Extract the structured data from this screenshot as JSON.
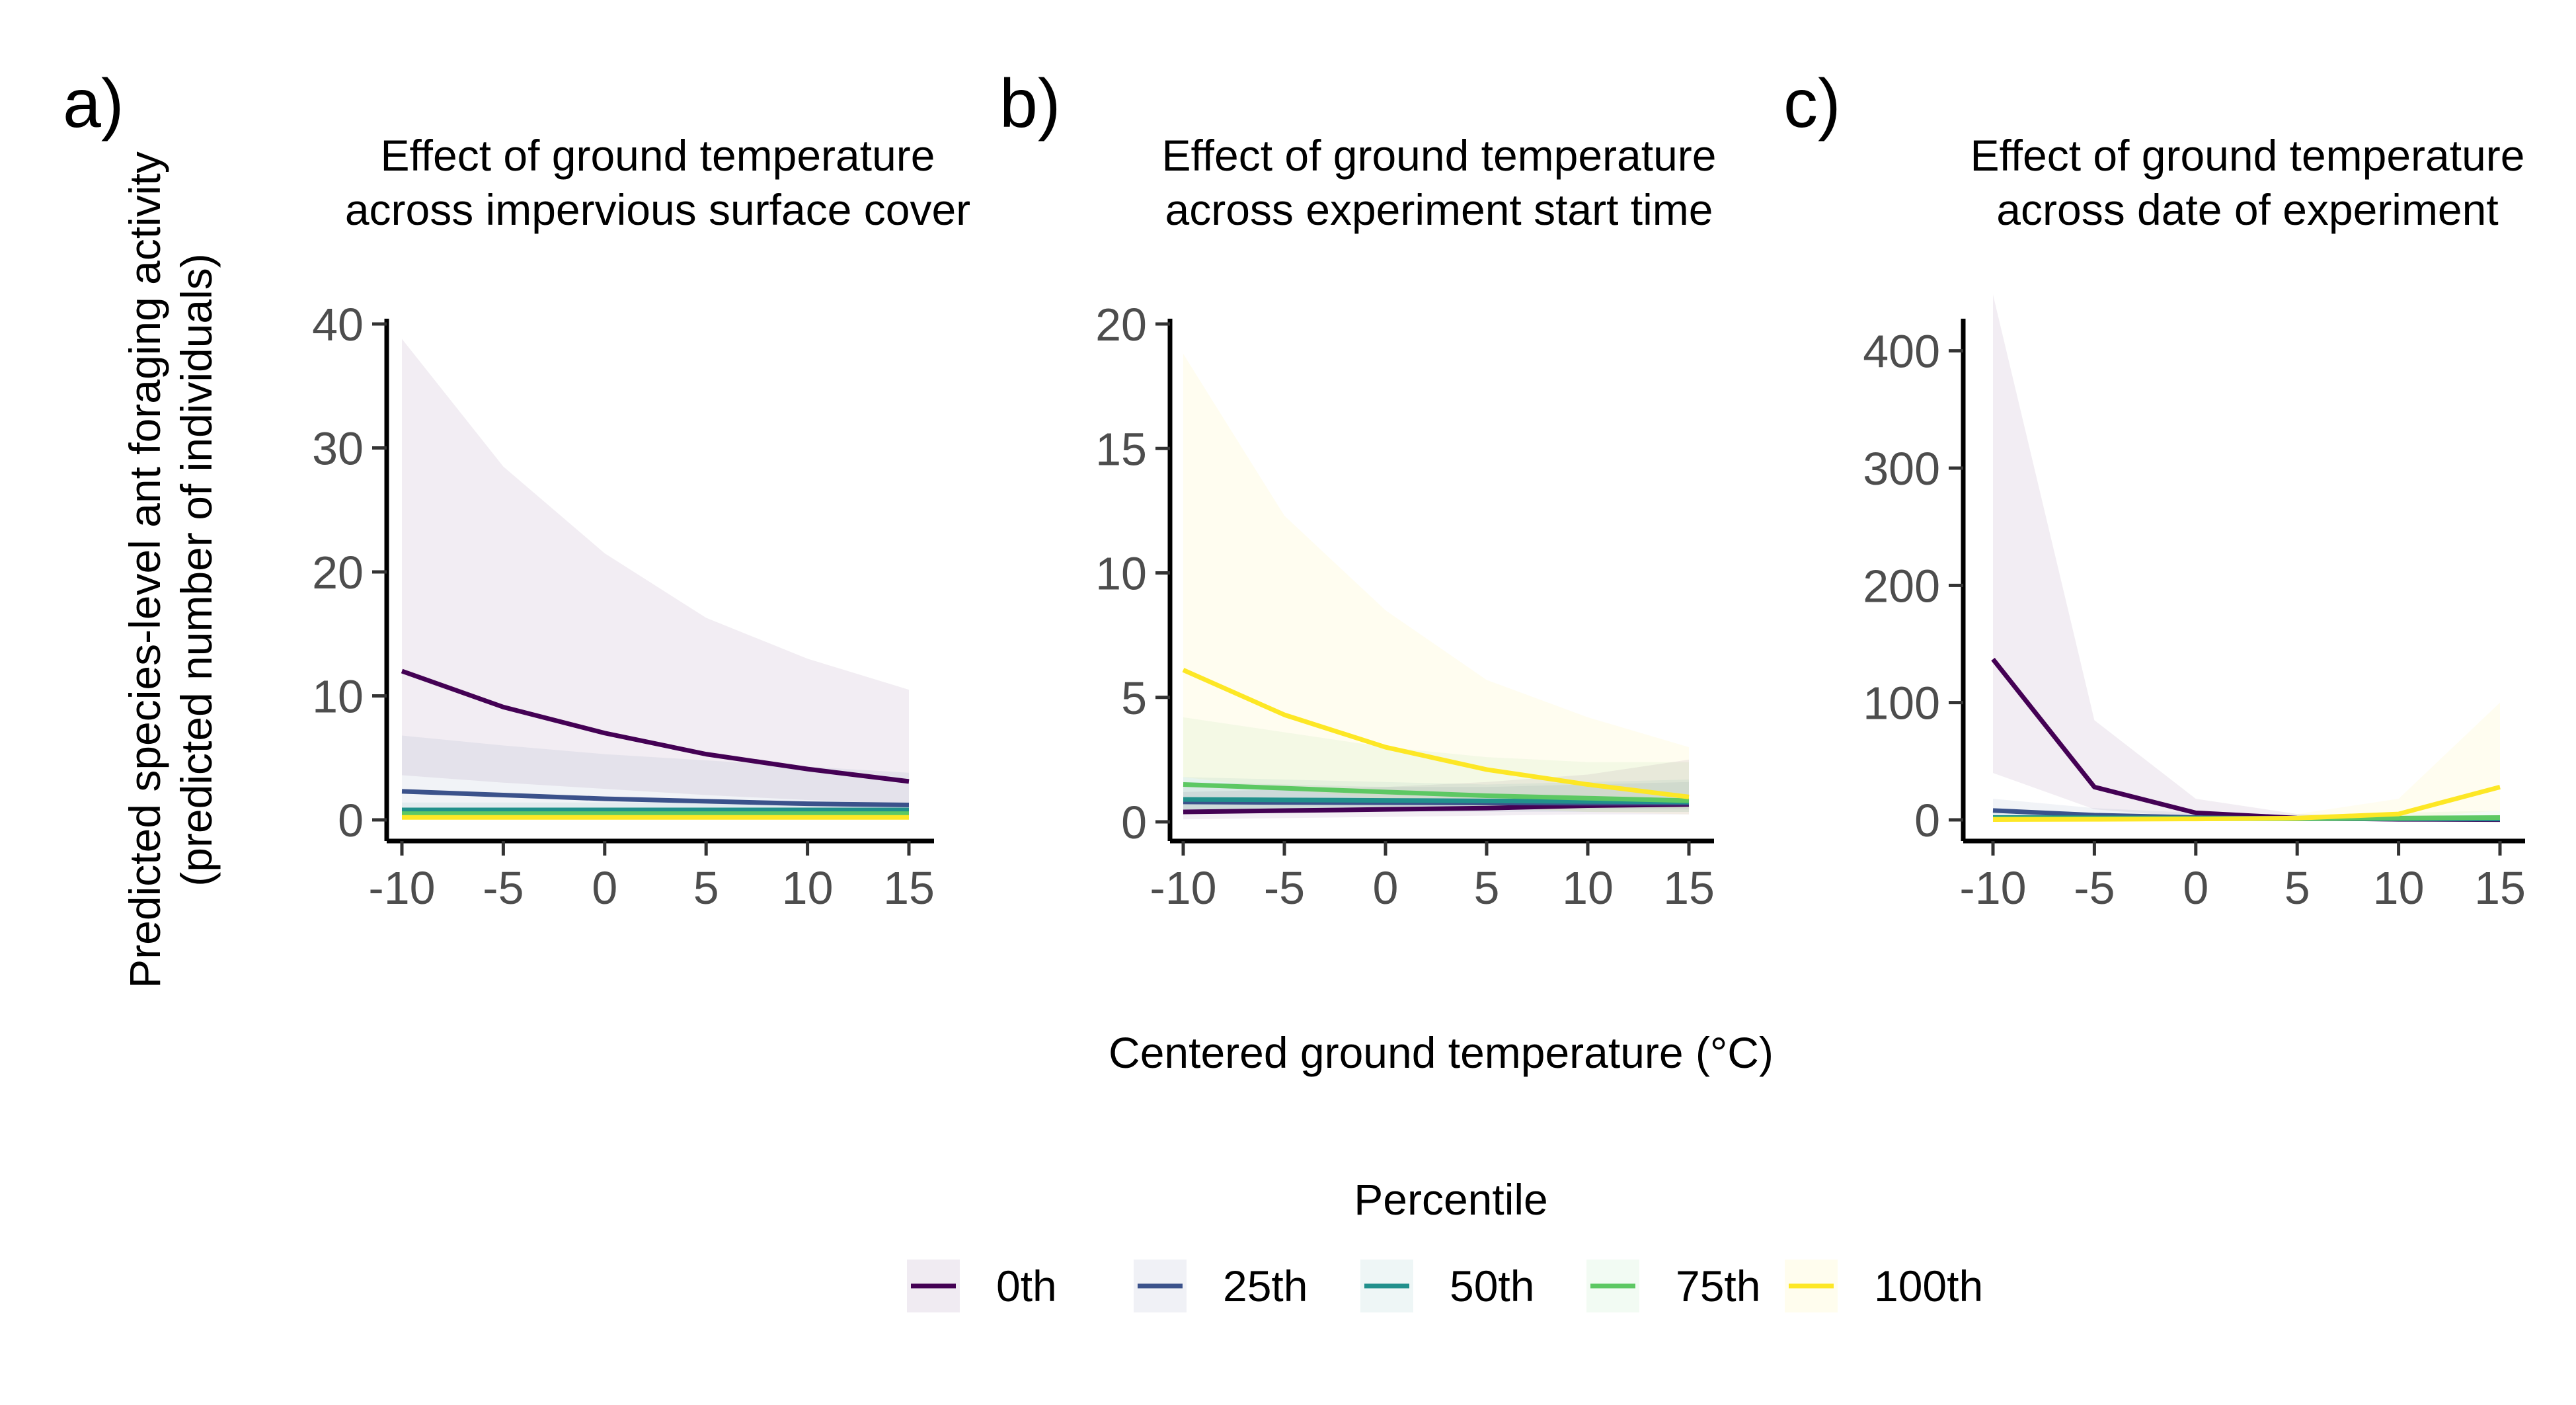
{
  "y_axis_label": [
    "Predicted species-level ant foraging activity",
    "(predicted number of individuals)"
  ],
  "x_axis_label": "Centered ground temperature (°C)",
  "legend": {
    "title": "Percentile",
    "items": [
      {
        "label": "0th",
        "color": "#440154"
      },
      {
        "label": "25th",
        "color": "#3B528B"
      },
      {
        "label": "50th",
        "color": "#21908C"
      },
      {
        "label": "75th",
        "color": "#5DC863"
      },
      {
        "label": "100th",
        "color": "#FDE725"
      }
    ]
  },
  "chart_data": [
    {
      "type": "line",
      "panel_label": "a)",
      "title": [
        "Effect of ground temperature",
        "across impervious surface cover"
      ],
      "xlim": [
        -10,
        15
      ],
      "ylim": [
        0,
        40
      ],
      "x_ticks": [
        "-10",
        "-5",
        "0",
        "5",
        "10",
        "15"
      ],
      "y_ticks": [
        "0",
        "10",
        "20",
        "30",
        "40"
      ],
      "x": [
        -10,
        -5,
        0,
        5,
        10,
        15
      ],
      "series": [
        {
          "name": "0th",
          "values": [
            12,
            9.1,
            7,
            5.3,
            4.1,
            3.1
          ],
          "lower": [
            3.6,
            3.0,
            2.5,
            2.0,
            1.6,
            1.3
          ],
          "upper": [
            38.8,
            28.5,
            21.5,
            16.3,
            13.0,
            10.5
          ]
        },
        {
          "name": "25th",
          "values": [
            2.3,
            2.0,
            1.7,
            1.5,
            1.3,
            1.2
          ],
          "lower": [
            0.9,
            0.8,
            0.7,
            0.6,
            0.5,
            0.4
          ],
          "upper": [
            6.8,
            6.0,
            5.3,
            4.8,
            4.3,
            3.8
          ]
        },
        {
          "name": "50th",
          "values": [
            0.8,
            0.8,
            0.8,
            0.8,
            0.8,
            0.8
          ],
          "lower": [
            0.4,
            0.4,
            0.4,
            0.4,
            0.4,
            0.4
          ],
          "upper": [
            1.4,
            1.4,
            1.4,
            1.4,
            1.4,
            1.4
          ]
        },
        {
          "name": "75th",
          "values": [
            0.5,
            0.5,
            0.5,
            0.5,
            0.5,
            0.5
          ],
          "lower": [
            0.2,
            0.2,
            0.2,
            0.2,
            0.2,
            0.2
          ],
          "upper": [
            1.0,
            1.0,
            1.0,
            1.0,
            1.0,
            1.0
          ]
        },
        {
          "name": "100th",
          "values": [
            0.2,
            0.2,
            0.2,
            0.2,
            0.2,
            0.2
          ],
          "lower": [
            0.05,
            0.05,
            0.05,
            0.05,
            0.05,
            0.05
          ],
          "upper": [
            0.6,
            0.6,
            0.6,
            0.6,
            0.6,
            0.6
          ]
        }
      ]
    },
    {
      "type": "line",
      "panel_label": "b)",
      "title": [
        "Effect of ground temperature",
        "across experiment start time"
      ],
      "xlim": [
        -10,
        15
      ],
      "ylim": [
        0,
        20
      ],
      "x_ticks": [
        "-10",
        "-5",
        "0",
        "5",
        "10",
        "15"
      ],
      "y_ticks": [
        "0",
        "5",
        "10",
        "15",
        "20"
      ],
      "x": [
        -10,
        -5,
        0,
        5,
        10,
        15
      ],
      "series": [
        {
          "name": "0th",
          "values": [
            0.4,
            0.45,
            0.5,
            0.55,
            0.65,
            0.7
          ],
          "lower": [
            0.1,
            0.15,
            0.2,
            0.25,
            0.3,
            0.3
          ],
          "upper": [
            1.2,
            1.3,
            1.4,
            1.6,
            1.9,
            2.5
          ]
        },
        {
          "name": "25th",
          "values": [
            0.8,
            0.78,
            0.77,
            0.76,
            0.75,
            0.75
          ],
          "lower": [
            0.4,
            0.4,
            0.4,
            0.4,
            0.4,
            0.4
          ],
          "upper": [
            1.6,
            1.5,
            1.4,
            1.4,
            1.5,
            1.6
          ]
        },
        {
          "name": "50th",
          "values": [
            0.9,
            0.88,
            0.86,
            0.84,
            0.82,
            0.8
          ],
          "lower": [
            0.5,
            0.5,
            0.5,
            0.5,
            0.5,
            0.5
          ],
          "upper": [
            1.8,
            1.7,
            1.6,
            1.5,
            1.6,
            1.7
          ]
        },
        {
          "name": "75th",
          "values": [
            1.5,
            1.35,
            1.2,
            1.05,
            0.95,
            0.85
          ],
          "lower": [
            0.5,
            0.5,
            0.5,
            0.5,
            0.4,
            0.4
          ],
          "upper": [
            4.2,
            3.6,
            3.0,
            2.6,
            2.4,
            2.4
          ]
        },
        {
          "name": "100th",
          "values": [
            6.1,
            4.3,
            3.0,
            2.1,
            1.5,
            1.0
          ],
          "lower": [
            1.8,
            1.3,
            0.9,
            0.6,
            0.4,
            0.3
          ],
          "upper": [
            18.8,
            12.3,
            8.5,
            5.7,
            4.2,
            3.0
          ]
        }
      ]
    },
    {
      "type": "line",
      "panel_label": "c)",
      "title": [
        "Effect of ground temperature",
        "across date of experiment"
      ],
      "xlim": [
        -10,
        15
      ],
      "ylim": [
        0,
        450
      ],
      "x_ticks": [
        "-10",
        "-5",
        "0",
        "5",
        "10",
        "15"
      ],
      "y_ticks": [
        "0",
        "100",
        "200",
        "300",
        "400"
      ],
      "x": [
        -10,
        -5,
        0,
        5,
        10,
        15
      ],
      "series": [
        {
          "name": "0th",
          "values": [
            137,
            28,
            6,
            1.5,
            0.5,
            0.2
          ],
          "lower": [
            40,
            9,
            2,
            0.5,
            0.1,
            0.05
          ],
          "upper": [
            448,
            85,
            18,
            5,
            2,
            1
          ]
        },
        {
          "name": "25th",
          "values": [
            8,
            4,
            2,
            1,
            0.8,
            0.6
          ],
          "lower": [
            2,
            1,
            0.5,
            0.3,
            0.2,
            0.1
          ],
          "upper": [
            18,
            10,
            6,
            3,
            2,
            2
          ]
        },
        {
          "name": "50th",
          "values": [
            2,
            1.8,
            1.5,
            1.2,
            1,
            1
          ],
          "lower": [
            0.5,
            0.5,
            0.4,
            0.3,
            0.3,
            0.3
          ],
          "upper": [
            6,
            5,
            4,
            3,
            3,
            3
          ]
        },
        {
          "name": "75th",
          "values": [
            1,
            1,
            1,
            1,
            1.5,
            2
          ],
          "lower": [
            0.2,
            0.2,
            0.2,
            0.2,
            0.3,
            0.4
          ],
          "upper": [
            4,
            4,
            4,
            4,
            6,
            8
          ]
        },
        {
          "name": "100th",
          "values": [
            0.3,
            0.5,
            0.8,
            1.5,
            5,
            28
          ],
          "lower": [
            0.05,
            0.1,
            0.2,
            0.3,
            1,
            8
          ],
          "upper": [
            1,
            2,
            3,
            5,
            18,
            100
          ]
        }
      ]
    }
  ]
}
